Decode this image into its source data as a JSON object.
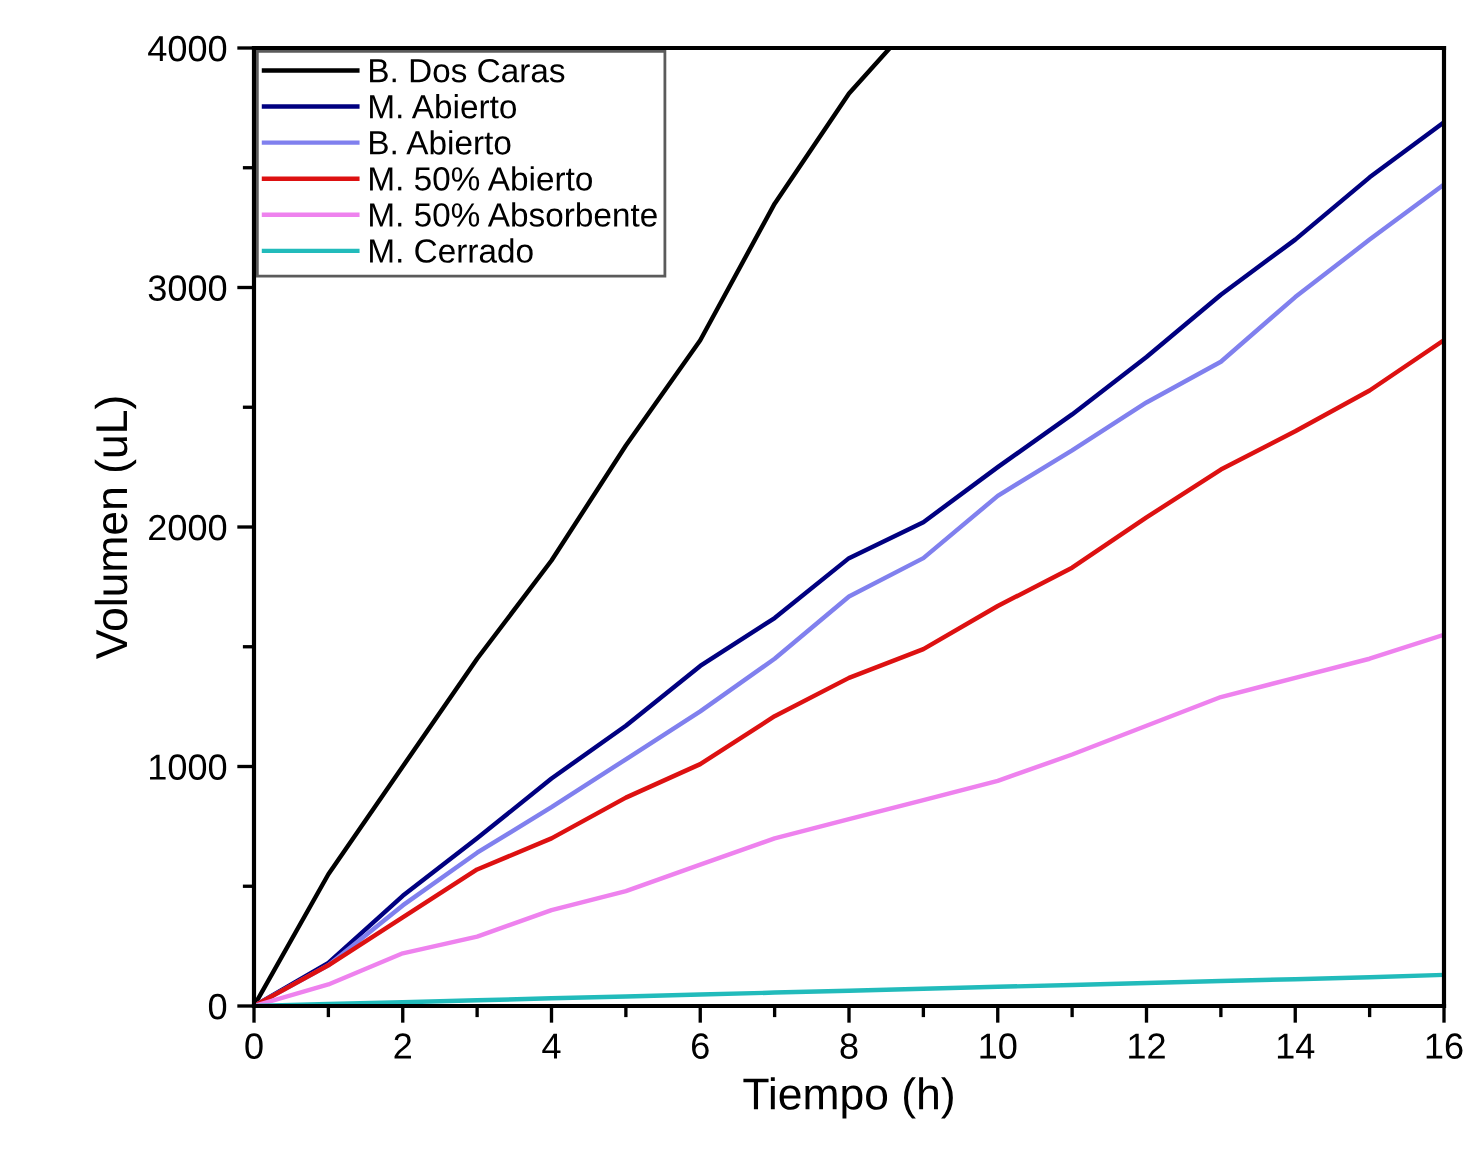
{
  "chart_data": {
    "type": "line",
    "xlabel": "Tiempo (h)",
    "ylabel": "Volumen (uL)",
    "x": [
      0,
      1,
      2,
      3,
      4,
      5,
      6,
      7,
      8,
      9,
      10,
      11,
      12,
      13,
      14,
      15,
      16
    ],
    "series": [
      {
        "name": "B. Dos Caras",
        "color": "#000000",
        "x": [
          0,
          1,
          2,
          3,
          4,
          5,
          6,
          7,
          8,
          8.55
        ],
        "values": [
          0,
          550,
          1000,
          1450,
          1860,
          2340,
          2780,
          3350,
          3810,
          4000
        ]
      },
      {
        "name": "M. Abierto",
        "color": "#000080",
        "values": [
          0,
          180,
          460,
          700,
          950,
          1170,
          1420,
          1620,
          1870,
          2020,
          2250,
          2470,
          2710,
          2970,
          3200,
          3460,
          3690
        ]
      },
      {
        "name": "B. Abierto",
        "color": "#8080ee",
        "values": [
          0,
          170,
          420,
          640,
          830,
          1030,
          1230,
          1450,
          1710,
          1870,
          2130,
          2320,
          2520,
          2690,
          2960,
          3200,
          3430
        ]
      },
      {
        "name": "M. 50% Abierto",
        "color": "#dd1111",
        "values": [
          0,
          170,
          370,
          570,
          700,
          870,
          1010,
          1210,
          1370,
          1490,
          1670,
          1830,
          2040,
          2240,
          2400,
          2570,
          2780
        ]
      },
      {
        "name": "M. 50% Absorbente",
        "color": "#ee82ee",
        "values": [
          0,
          90,
          220,
          290,
          400,
          480,
          590,
          700,
          780,
          860,
          940,
          1050,
          1170,
          1290,
          1370,
          1450,
          1550
        ]
      },
      {
        "name": "M. Cerrado",
        "color": "#22bbbb",
        "values": [
          0,
          8,
          16,
          24,
          32,
          40,
          48,
          56,
          64,
          72,
          80,
          88,
          96,
          104,
          112,
          120,
          130
        ]
      }
    ],
    "xlim": [
      0,
      16
    ],
    "ylim": [
      0,
      4000
    ],
    "xticks": [
      0,
      {
        "value": 1,
        "label": null
      },
      2,
      {
        "value": 3,
        "label": null
      },
      4,
      {
        "value": 5,
        "label": null
      },
      6,
      {
        "value": 7,
        "label": null
      },
      8,
      {
        "value": 9,
        "label": null
      },
      10,
      {
        "value": 11,
        "label": null
      },
      12,
      {
        "value": 13,
        "label": null
      },
      14,
      {
        "value": 15,
        "label": null
      },
      16
    ],
    "yticks": [
      0,
      {
        "value": 500,
        "label": null
      },
      1000,
      {
        "value": 1500,
        "label": null
      },
      2000,
      {
        "value": 2500,
        "label": null
      },
      3000,
      {
        "value": 3500,
        "label": null
      },
      4000
    ],
    "grid": false,
    "legend": "top left",
    "marker": "none",
    "line_style": "solid"
  }
}
